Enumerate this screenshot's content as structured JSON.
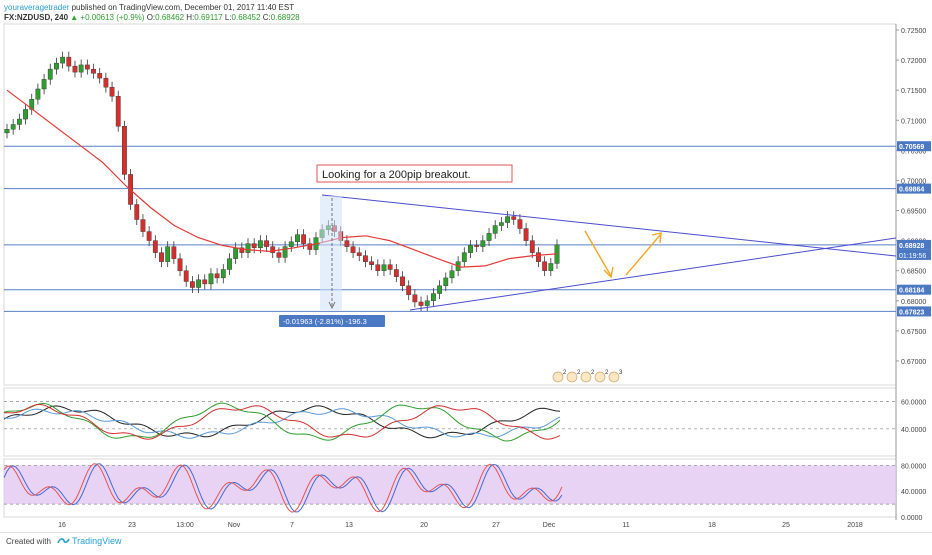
{
  "header": {
    "author": "youraveragetrader",
    "published": "published on TradingView.com, December 01, 2017 11:40 EST",
    "symbol": "FX:NZDUSD, 240",
    "change": "+0.00613 (+0.9%)",
    "open_label": "O:",
    "open": "0.68462",
    "high_label": "H:",
    "high": "0.69117",
    "low_label": "L:",
    "low": "0.68452",
    "close_label": "C:",
    "close": "0.68928"
  },
  "footer": {
    "created": "Created with",
    "brand": "TradingView"
  },
  "colors": {
    "up": "#2e9e2e",
    "down": "#d32f2f",
    "ma": "#e53935",
    "hline": "#5a7fc8",
    "trend": "#4b4ccf",
    "arrow": "#f5a623",
    "label_bg": "#4a78c2",
    "stoch_bg": "#e3c8f2"
  },
  "chart_data": [
    {
      "type": "candlestick",
      "ylim": [
        0.666,
        0.726
      ],
      "price_ticks": [
        "0.72500",
        "0.72000",
        "0.71500",
        "0.71000",
        "0.70500",
        "0.70000",
        "0.69500",
        "0.69000",
        "0.68500",
        "0.68000",
        "0.67500",
        "0.67000"
      ],
      "x_ticks": [
        "16",
        "23",
        "13:00",
        "Nov",
        "7",
        "13",
        "20",
        "27",
        "Dec",
        "11",
        "18",
        "25",
        "2018"
      ],
      "closes": [
        0.7085,
        0.7093,
        0.7102,
        0.7118,
        0.7135,
        0.7152,
        0.7168,
        0.7185,
        0.7195,
        0.7205,
        0.719,
        0.718,
        0.7192,
        0.7185,
        0.7178,
        0.717,
        0.7155,
        0.714,
        0.709,
        0.701,
        0.696,
        0.6935,
        0.6915,
        0.69,
        0.688,
        0.6865,
        0.689,
        0.687,
        0.685,
        0.6832,
        0.6822,
        0.6835,
        0.6828,
        0.6845,
        0.6838,
        0.6852,
        0.687,
        0.6888,
        0.688,
        0.6895,
        0.6888,
        0.69,
        0.689,
        0.688,
        0.6872,
        0.689,
        0.6898,
        0.691,
        0.6895,
        0.6885,
        0.6905,
        0.6918,
        0.6925,
        0.6915,
        0.69,
        0.689,
        0.688,
        0.6875,
        0.6865,
        0.686,
        0.685,
        0.686,
        0.6852,
        0.684,
        0.6825,
        0.681,
        0.6798,
        0.6792,
        0.68,
        0.6812,
        0.6825,
        0.6838,
        0.685,
        0.6865,
        0.688,
        0.6892,
        0.689,
        0.69,
        0.6912,
        0.6925,
        0.693,
        0.694,
        0.6935,
        0.692,
        0.69,
        0.688,
        0.6865,
        0.685,
        0.6862,
        0.6893
      ],
      "ma_closes": [
        0.715,
        0.712,
        0.709,
        0.706,
        0.703,
        0.699,
        0.6955,
        0.6925,
        0.6905,
        0.6892,
        0.6885,
        0.6882,
        0.6888,
        0.6895,
        0.6905,
        0.6908,
        0.69,
        0.6885,
        0.687,
        0.6856,
        0.6858,
        0.687,
        0.6875,
        0.6878
      ],
      "horizontal_levels": [
        0.70569,
        0.69864,
        0.68928,
        0.68184,
        0.67823
      ],
      "level_labels": [
        "0.70569",
        "0.69864",
        "0.68928",
        "0.68184",
        "0.67823"
      ],
      "countdown": "01:19:56",
      "annotation": "Looking for a 200pip breakout.",
      "measure_label": "-0.01963 (-2.81%) -196.3",
      "event_flags": [
        "2",
        "2",
        "2",
        "2",
        "3"
      ]
    },
    {
      "type": "line",
      "name": "oscillator with bands",
      "ylim": [
        20,
        70
      ],
      "ticks": [
        "60.0000",
        "40.0000"
      ],
      "dashed_levels": [
        60,
        40
      ]
    },
    {
      "type": "line",
      "name": "stochastic",
      "ylim": [
        0,
        90
      ],
      "ticks": [
        "80.0000",
        "40.0000",
        "0.0000"
      ],
      "dashed_levels": [
        80,
        20
      ]
    }
  ]
}
